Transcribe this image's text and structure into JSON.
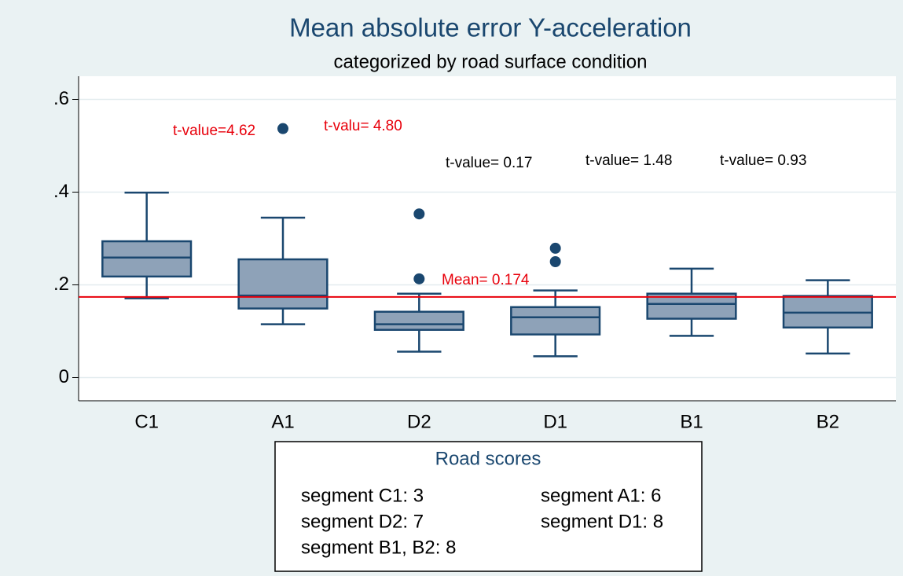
{
  "chart_data": {
    "type": "box",
    "title": "Mean absolute error Y-acceleration",
    "subtitle": "categorized by road surface condition",
    "categories": [
      "C1",
      "A1",
      "D2",
      "D1",
      "B1",
      "B2"
    ],
    "boxes": [
      {
        "whisker_low": 0.171,
        "q1": 0.218,
        "median": 0.259,
        "q3": 0.294,
        "whisker_high": 0.399,
        "outliers": []
      },
      {
        "whisker_low": 0.115,
        "q1": 0.149,
        "median": 0.177,
        "q3": 0.255,
        "whisker_high": 0.345,
        "outliers": [
          0.537
        ]
      },
      {
        "whisker_low": 0.056,
        "q1": 0.103,
        "median": 0.115,
        "q3": 0.142,
        "whisker_high": 0.181,
        "outliers": [
          0.353,
          0.213
        ]
      },
      {
        "whisker_low": 0.046,
        "q1": 0.093,
        "median": 0.13,
        "q3": 0.152,
        "whisker_high": 0.188,
        "outliers": [
          0.279,
          0.25
        ]
      },
      {
        "whisker_low": 0.09,
        "q1": 0.127,
        "median": 0.159,
        "q3": 0.181,
        "whisker_high": 0.235,
        "outliers": []
      },
      {
        "whisker_low": 0.052,
        "q1": 0.108,
        "median": 0.14,
        "q3": 0.176,
        "whisker_high": 0.21,
        "outliers": []
      }
    ],
    "box_color": "#8ea2b8",
    "line_color": "#1a476f",
    "ylim": [
      -0.05,
      0.65
    ],
    "yticks": [
      0,
      {
        "value": 0.2,
        "label": ".2"
      },
      {
        "value": 0.4,
        "label": ".4"
      },
      {
        "value": 0.6,
        "label": ".6"
      }
    ],
    "grid": true,
    "mean_line": {
      "value": 0.174,
      "label": "Mean= 0.174",
      "color": "#e8000b"
    },
    "annotations": [
      {
        "text": "t-value=4.62",
        "color": "#e8000b"
      },
      {
        "text": "t-valu= 4.80",
        "color": "#e8000b"
      },
      {
        "text": "t-value= 0.17",
        "color": "#000000"
      },
      {
        "text": "t-value= 1.48",
        "color": "#000000"
      },
      {
        "text": "t-value= 0.93",
        "color": "#000000"
      }
    ],
    "legend": {
      "title": "Road scores",
      "items": [
        "segment C1: 3",
        "segment A1: 6",
        "segment D2: 7",
        "segment D1: 8",
        "segment B1, B2: 8"
      ]
    }
  }
}
